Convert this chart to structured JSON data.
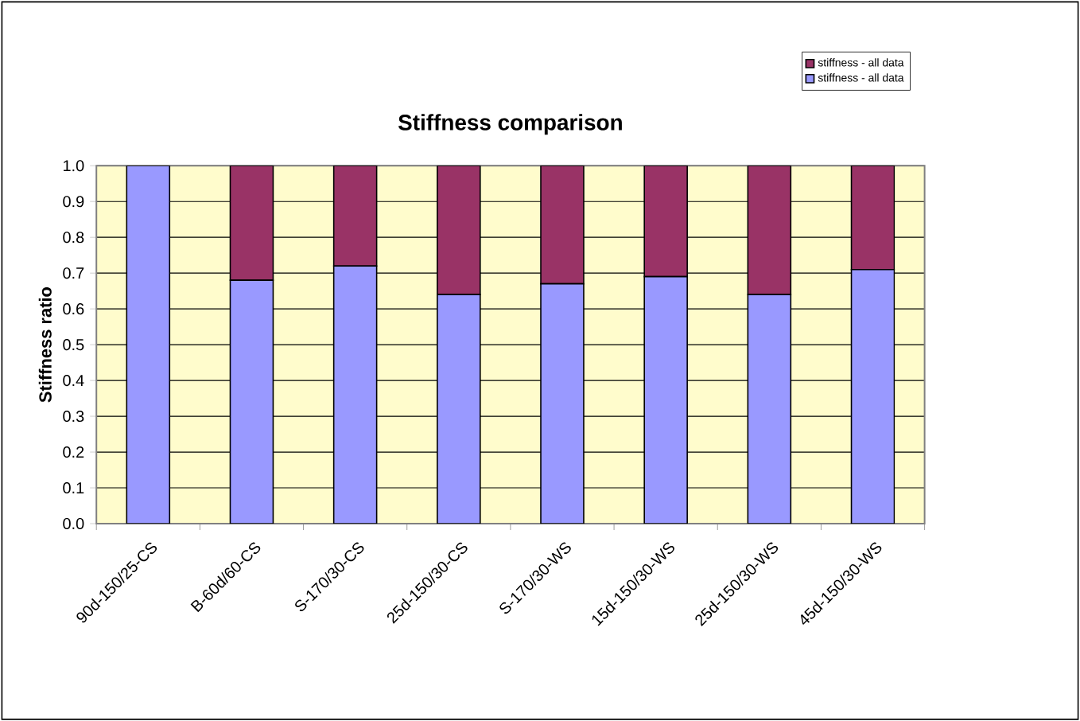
{
  "chart_data": {
    "type": "bar",
    "title": "Stiffness comparison",
    "ylabel": "Stiffness ratio",
    "categories": [
      "90d-150/25-CS",
      "B-60d/60-CS",
      "S-170/30-CS",
      "25d-150/30-CS",
      "S-170/30-WS",
      "15d-150/30-WS",
      "25d-150/30-WS",
      "45d-150/30-WS"
    ],
    "series": [
      {
        "name": "stiffness - all data",
        "color": "#9999ff",
        "values": [
          1.0,
          0.68,
          0.72,
          0.64,
          0.67,
          0.69,
          0.64,
          0.71
        ]
      },
      {
        "name": "stiffness - all data",
        "color": "#993366",
        "values": [
          0.0,
          0.32,
          0.28,
          0.36,
          0.33,
          0.31,
          0.36,
          0.29
        ]
      }
    ],
    "stacked": true,
    "ylim": [
      0,
      1.0
    ],
    "yticks": [
      {
        "value": 0,
        "label": "0.0"
      },
      0.1,
      0.2,
      0.3,
      0.4,
      0.5,
      0.6,
      0.7,
      0.8,
      0.9,
      {
        "value": 1.0,
        "label": "1.0"
      }
    ],
    "grid": "y",
    "legend": "top right"
  }
}
